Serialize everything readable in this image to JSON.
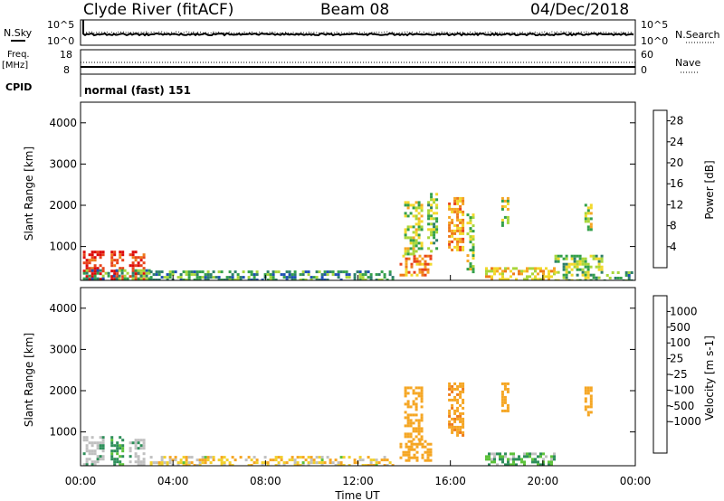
{
  "header": {
    "station": "Clyde River (fitACF)",
    "beam": "Beam 08",
    "date": "04/Dec/2018"
  },
  "top_panels": {
    "nsky_label": "N.Sky",
    "nsearch_label": "N.Search",
    "freq_label": "Freq.",
    "freq_unit": "[MHz]",
    "nave_label": "Nave",
    "cpid_label": "CPID",
    "cpid_value": "normal (fast) 151",
    "noise_ticks_left": [
      "10^5",
      "10^0"
    ],
    "noise_ticks_right": [
      "10^5",
      "10^0"
    ],
    "freq_ticks_left": [
      "18",
      "8"
    ],
    "nave_ticks_right": [
      "60",
      "0"
    ]
  },
  "chart_data": [
    {
      "type": "heatmap",
      "name": "power",
      "ylabel": "Slant Range [km]",
      "xlabel": "",
      "ylim": [
        180,
        4500
      ],
      "xlim": [
        0,
        24
      ],
      "y_ticks": [
        1000,
        2000,
        3000,
        4000
      ],
      "colorbar_label": "Power [dB]",
      "colorbar_ticks": [
        "4",
        "8",
        "12",
        "16",
        "20",
        "24",
        "28"
      ],
      "colorbar_colors": [
        "#0a22e8",
        "#1f4fb5",
        "#2e7f6a",
        "#33a04a",
        "#a8d63a",
        "#f2d82a",
        "#f5a623",
        "#ee7a1a",
        "#e8431a",
        "#dd0a0a"
      ],
      "colorbar_range": [
        0,
        30
      ],
      "regions": [
        {
          "t": [
            0.1,
            1.0
          ],
          "r": [
            180,
            900
          ],
          "v": 28
        },
        {
          "t": [
            1.3,
            1.8
          ],
          "r": [
            180,
            900
          ],
          "v": 27
        },
        {
          "t": [
            2.1,
            2.8
          ],
          "r": [
            180,
            900
          ],
          "v": 27
        },
        {
          "t": [
            0.1,
            3.0
          ],
          "r": [
            180,
            450
          ],
          "v": 10
        },
        {
          "t": [
            3.0,
            13.5
          ],
          "r": [
            180,
            420
          ],
          "v": 9
        },
        {
          "t": [
            13.8,
            15.2
          ],
          "r": [
            300,
            800
          ],
          "v": 22
        },
        {
          "t": [
            14.0,
            14.8
          ],
          "r": [
            800,
            2100
          ],
          "v": 14
        },
        {
          "t": [
            15.0,
            15.4
          ],
          "r": [
            900,
            2300
          ],
          "v": 13
        },
        {
          "t": [
            15.9,
            16.5
          ],
          "r": [
            900,
            2200
          ],
          "v": 20
        },
        {
          "t": [
            16.7,
            17.0
          ],
          "r": [
            400,
            1800
          ],
          "v": 14
        },
        {
          "t": [
            18.2,
            18.5
          ],
          "r": [
            1500,
            2200
          ],
          "v": 14
        },
        {
          "t": [
            17.5,
            20.5
          ],
          "r": [
            180,
            500
          ],
          "v": 18
        },
        {
          "t": [
            20.5,
            22.5
          ],
          "r": [
            180,
            800
          ],
          "v": 12
        },
        {
          "t": [
            21.8,
            22.1
          ],
          "r": [
            1400,
            2100
          ],
          "v": 14
        },
        {
          "t": [
            22.5,
            23.8
          ],
          "r": [
            180,
            400
          ],
          "v": 10
        }
      ]
    },
    {
      "type": "heatmap",
      "name": "velocity",
      "ylabel": "Slant Range [km]",
      "xlabel": "Time UT",
      "ylim": [
        180,
        4500
      ],
      "xlim": [
        0,
        24
      ],
      "x_ticks": [
        "00:00",
        "04:00",
        "08:00",
        "12:00",
        "16:00",
        "20:00",
        "00:00"
      ],
      "y_ticks": [
        1000,
        2000,
        3000,
        4000
      ],
      "colorbar_label": "Velocity [m s-1]",
      "colorbar_ticks": [
        "1000",
        "500",
        "100",
        "25",
        "-25",
        "-100",
        "-500",
        "-1000"
      ],
      "colorbar_colors": [
        "#1a30c8",
        "#2a6fb0",
        "#2e8f5a",
        "#5cc23a",
        "#c0c0c0",
        "#f2d02a",
        "#f5a623",
        "#ee7a1a",
        "#e8431a",
        "#dd0a0a"
      ],
      "regions": [
        {
          "t": [
            0.1,
            1.0
          ],
          "r": [
            180,
            900
          ],
          "v": "gs"
        },
        {
          "t": [
            1.3,
            1.8
          ],
          "r": [
            180,
            900
          ],
          "v": 150
        },
        {
          "t": [
            2.1,
            2.8
          ],
          "r": [
            180,
            900
          ],
          "v": "gs"
        },
        {
          "t": [
            3.0,
            13.5
          ],
          "r": [
            180,
            420
          ],
          "v": -60
        },
        {
          "t": [
            13.8,
            15.2
          ],
          "r": [
            300,
            800
          ],
          "v": -400
        },
        {
          "t": [
            14.0,
            14.8
          ],
          "r": [
            800,
            2100
          ],
          "v": -300
        },
        {
          "t": [
            15.9,
            16.5
          ],
          "r": [
            900,
            2200
          ],
          "v": -450
        },
        {
          "t": [
            18.2,
            18.5
          ],
          "r": [
            1500,
            2200
          ],
          "v": -300
        },
        {
          "t": [
            17.5,
            20.5
          ],
          "r": [
            180,
            500
          ],
          "v": 80
        },
        {
          "t": [
            21.8,
            22.1
          ],
          "r": [
            1400,
            2100
          ],
          "v": -350
        }
      ]
    }
  ]
}
